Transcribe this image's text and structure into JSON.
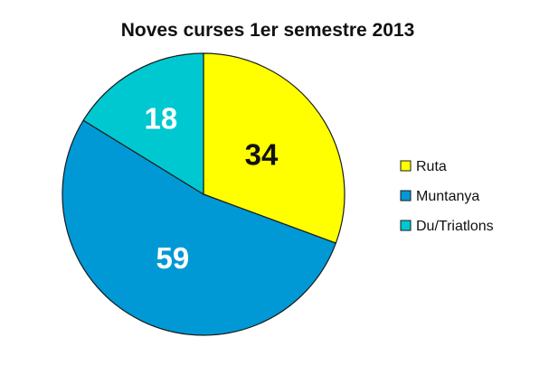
{
  "chart_data": {
    "type": "pie",
    "title": "Noves curses 1er semestre 2013",
    "categories": [
      "Ruta",
      "Muntanya",
      "Du/Triatlons"
    ],
    "values": [
      34,
      59,
      18
    ],
    "colors": [
      "#ffff00",
      "#0099d6",
      "#00c8d0"
    ],
    "label_colors": [
      "#111111",
      "#ffffff",
      "#ffffff"
    ],
    "start_angle_deg": 0,
    "direction": "clockwise",
    "legend": {
      "placement": "right",
      "entries": [
        "Ruta",
        "Muntanya",
        "Du/Triatlons"
      ]
    }
  }
}
